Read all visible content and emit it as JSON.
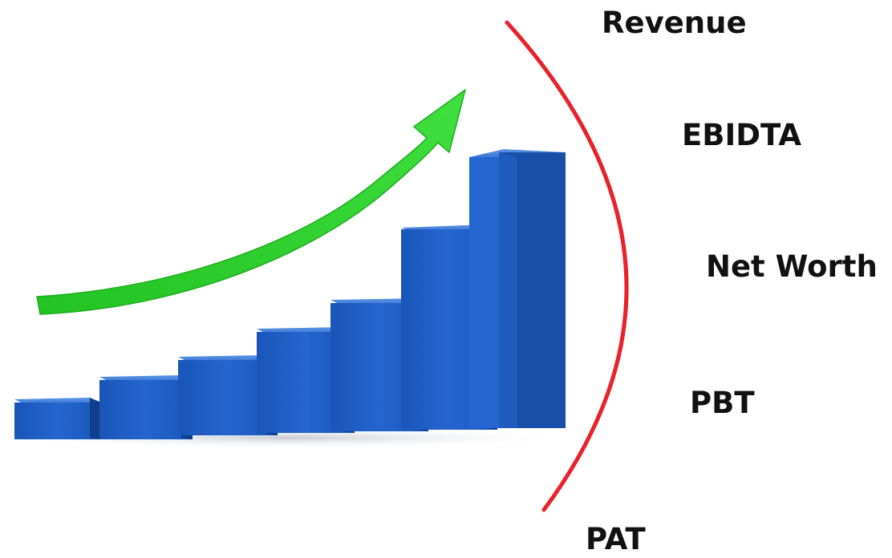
{
  "metrics": {
    "revenue": "Revenue",
    "ebidta": "EBIDTA",
    "net_worth": "Net Worth",
    "pbt": "PBT",
    "pat": "PAT"
  },
  "colors": {
    "bar_front": "#1e5fc4",
    "bar_top": "#4d86e0",
    "bar_side": "#0f3e8c",
    "arrow": "#2fcf2f",
    "arc": "#e8212a",
    "text": "#111111"
  }
}
